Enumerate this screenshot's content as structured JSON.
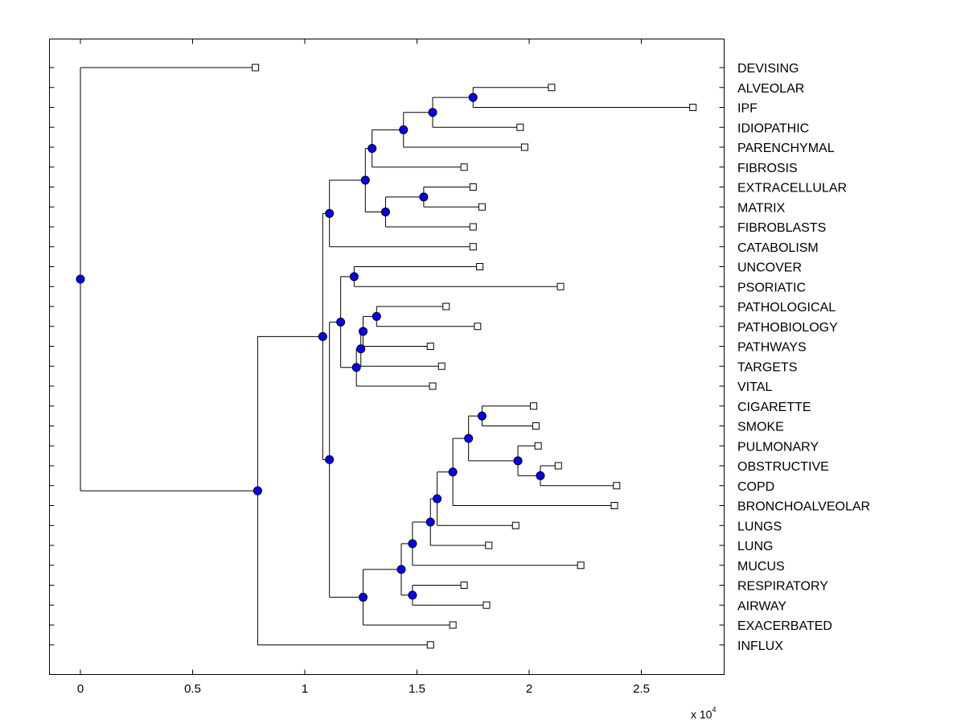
{
  "chart_data": {
    "type": "dendrogram",
    "orientation": "horizontal",
    "title": "",
    "xlabel": "",
    "ylabel": "",
    "x_multiplier_label": {
      "base": "x 10",
      "exponent": "4"
    },
    "xlim": [
      -0.14,
      2.86
    ],
    "x_ticks": [
      0,
      0.5,
      1,
      1.5,
      2,
      2.5
    ],
    "x_tick_labels": [
      "0",
      "0.5",
      "1",
      "1.5",
      "2",
      "2.5"
    ],
    "grid": false,
    "node_color": "#0000ff",
    "leaf_marker_color": "#ffffff",
    "line_color": "#000000",
    "leaves": [
      {
        "label": "DEVISING",
        "x": 0.78
      },
      {
        "label": "ALVEOLAR",
        "x": 2.1
      },
      {
        "label": "IPF",
        "x": 2.73
      },
      {
        "label": "IDIOPATHIC",
        "x": 1.96
      },
      {
        "label": "PARENCHYMAL",
        "x": 1.98
      },
      {
        "label": "FIBROSIS",
        "x": 1.71
      },
      {
        "label": "EXTRACELLULAR",
        "x": 1.75
      },
      {
        "label": "MATRIX",
        "x": 1.79
      },
      {
        "label": "FIBROBLASTS",
        "x": 1.75
      },
      {
        "label": "CATABOLISM",
        "x": 1.75
      },
      {
        "label": "UNCOVER",
        "x": 1.78
      },
      {
        "label": "PSORIATIC",
        "x": 2.14
      },
      {
        "label": "PATHOLOGICAL",
        "x": 1.63
      },
      {
        "label": "PATHOBIOLOGY",
        "x": 1.77
      },
      {
        "label": "PATHWAYS",
        "x": 1.56
      },
      {
        "label": "TARGETS",
        "x": 1.61
      },
      {
        "label": "VITAL",
        "x": 1.57
      },
      {
        "label": "CIGARETTE",
        "x": 2.02
      },
      {
        "label": "SMOKE",
        "x": 2.03
      },
      {
        "label": "PULMONARY",
        "x": 2.04
      },
      {
        "label": "OBSTRUCTIVE",
        "x": 2.13
      },
      {
        "label": "COPD",
        "x": 2.39
      },
      {
        "label": "BRONCHOALVEOLAR",
        "x": 2.38
      },
      {
        "label": "LUNGS",
        "x": 1.94
      },
      {
        "label": "LUNG",
        "x": 1.82
      },
      {
        "label": "MUCUS",
        "x": 2.23
      },
      {
        "label": "RESPIRATORY",
        "x": 1.71
      },
      {
        "label": "AIRWAY",
        "x": 1.81
      },
      {
        "label": "EXACERBATED",
        "x": 1.66
      },
      {
        "label": "INFLUX",
        "x": 1.56
      }
    ],
    "internal_nodes": [
      {
        "id": "n1",
        "x": 1.75,
        "children": [
          "ALVEOLAR",
          "IPF"
        ]
      },
      {
        "id": "n2",
        "x": 1.57,
        "children": [
          "n1",
          "IDIOPATHIC"
        ]
      },
      {
        "id": "n3",
        "x": 1.44,
        "children": [
          "n2",
          "PARENCHYMAL"
        ]
      },
      {
        "id": "n4",
        "x": 1.3,
        "children": [
          "n3",
          "FIBROSIS"
        ]
      },
      {
        "id": "n5",
        "x": 1.53,
        "children": [
          "EXTRACELLULAR",
          "MATRIX"
        ]
      },
      {
        "id": "n6",
        "x": 1.36,
        "children": [
          "n5",
          "FIBROBLASTS"
        ]
      },
      {
        "id": "n7",
        "x": 1.27,
        "children": [
          "n4",
          "n6"
        ]
      },
      {
        "id": "n8",
        "x": 1.11,
        "children": [
          "n7",
          "CATABOLISM"
        ]
      },
      {
        "id": "n9",
        "x": 1.22,
        "children": [
          "UNCOVER",
          "PSORIATIC"
        ]
      },
      {
        "id": "n10",
        "x": 1.32,
        "children": [
          "PATHOLOGICAL",
          "PATHOBIOLOGY"
        ]
      },
      {
        "id": "n11",
        "x": 1.26,
        "children": [
          "n10",
          "PATHWAYS"
        ]
      },
      {
        "id": "n12",
        "x": 1.25,
        "children": [
          "n11",
          "TARGETS"
        ]
      },
      {
        "id": "n13",
        "x": 1.23,
        "children": [
          "n12",
          "VITAL"
        ]
      },
      {
        "id": "n14",
        "x": 1.16,
        "children": [
          "n9",
          "n13"
        ]
      },
      {
        "id": "n15",
        "x": 1.79,
        "children": [
          "CIGARETTE",
          "SMOKE"
        ]
      },
      {
        "id": "n16",
        "x": 2.05,
        "children": [
          "OBSTRUCTIVE",
          "COPD"
        ]
      },
      {
        "id": "n17",
        "x": 1.95,
        "children": [
          "PULMONARY",
          "n16"
        ]
      },
      {
        "id": "n18",
        "x": 1.73,
        "children": [
          "n15",
          "n17"
        ]
      },
      {
        "id": "n19",
        "x": 1.66,
        "children": [
          "n18",
          "BRONCHOALVEOLAR"
        ]
      },
      {
        "id": "n20",
        "x": 1.59,
        "children": [
          "n19",
          "LUNGS"
        ]
      },
      {
        "id": "n21",
        "x": 1.56,
        "children": [
          "n20",
          "LUNG"
        ]
      },
      {
        "id": "n22",
        "x": 1.48,
        "children": [
          "n21",
          "MUCUS"
        ]
      },
      {
        "id": "n23",
        "x": 1.48,
        "children": [
          "RESPIRATORY",
          "AIRWAY"
        ]
      },
      {
        "id": "n24",
        "x": 1.43,
        "children": [
          "n22",
          "n23"
        ]
      },
      {
        "id": "n25",
        "x": 1.26,
        "children": [
          "n24",
          "EXACERBATED"
        ]
      },
      {
        "id": "n26",
        "x": 1.11,
        "children": [
          "n14",
          "n25"
        ]
      },
      {
        "id": "n27",
        "x": 1.08,
        "children": [
          "n8",
          "n26"
        ]
      },
      {
        "id": "n28",
        "x": 0.79,
        "children": [
          "n27",
          "INFLUX"
        ]
      },
      {
        "id": "n29",
        "x": 0.0,
        "children": [
          "DEVISING",
          "n28"
        ]
      }
    ]
  }
}
